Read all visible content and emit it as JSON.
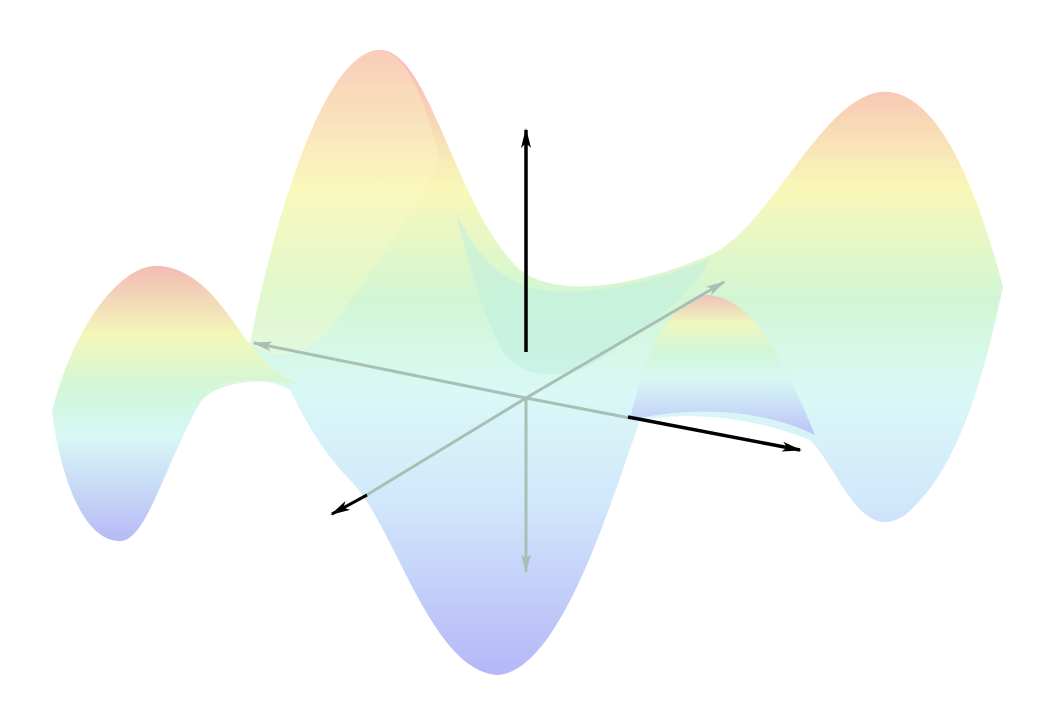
{
  "figure": {
    "kind": "3d-surface-with-axes",
    "surface": {
      "colormap": "rainbow-pastel",
      "opacity": 0.35
    },
    "axes": {
      "labels": []
    },
    "colors": {
      "background": "#ffffff",
      "axis_front": "#000000",
      "axis_behind": "#a8bfb6",
      "surface_red": "#f6aeb0",
      "surface_yellow": "#f9f8b4",
      "surface_green": "#cbf6d1",
      "surface_cyan": "#d6f7f5",
      "surface_blue": "#b1b3f7"
    }
  }
}
